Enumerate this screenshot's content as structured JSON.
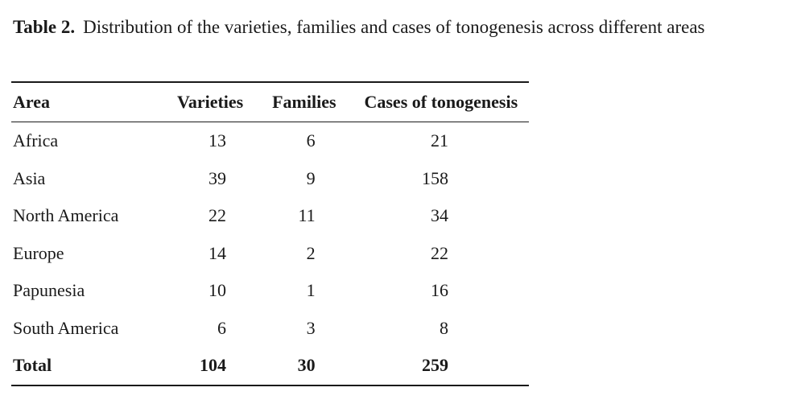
{
  "caption": {
    "label": "Table 2.",
    "text": "Distribution of the varieties, families and cases of tonogenesis across different areas"
  },
  "table": {
    "headers": [
      "Area",
      "Varieties",
      "Families",
      "Cases of tonogenesis"
    ],
    "rows": [
      {
        "area": "Africa",
        "varieties": "13",
        "families": "6",
        "cases": "21"
      },
      {
        "area": "Asia",
        "varieties": "39",
        "families": "9",
        "cases": "158"
      },
      {
        "area": "North America",
        "varieties": "22",
        "families": "11",
        "cases": "34"
      },
      {
        "area": "Europe",
        "varieties": "14",
        "families": "2",
        "cases": "22"
      },
      {
        "area": "Papunesia",
        "varieties": "10",
        "families": "1",
        "cases": "16"
      },
      {
        "area": "South America",
        "varieties": "6",
        "families": "3",
        "cases": "8"
      }
    ],
    "total": {
      "area": "Total",
      "varieties": "104",
      "families": "30",
      "cases": "259"
    }
  }
}
